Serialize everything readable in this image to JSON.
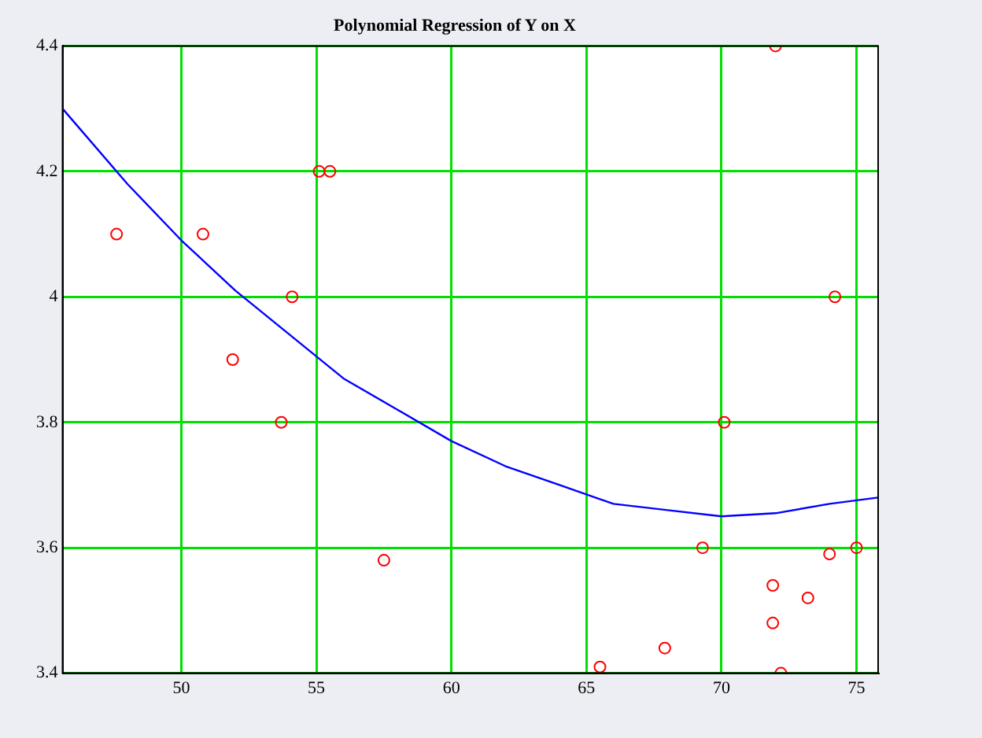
{
  "chart_data": {
    "type": "scatter",
    "title": "Polynomial Regression of Y on X",
    "xlim": [
      45.6,
      75.8
    ],
    "xticks": [
      50,
      55,
      60,
      65,
      70,
      75
    ],
    "ylim": [
      3.4,
      4.4
    ],
    "yticks": [
      3.4,
      3.6,
      3.8,
      4,
      4.2,
      4.4
    ],
    "grid": true,
    "legend": false,
    "series": [
      {
        "type": "scatter",
        "color": "#ff0000",
        "marker": "circle",
        "x": [
          47.6,
          50.8,
          51.9,
          54.1,
          53.7,
          55.1,
          55.5,
          57.5,
          65.5,
          67.9,
          69.3,
          70.1,
          72.0,
          71.9,
          71.9,
          72.2,
          73.2,
          74.0,
          74.2,
          75.0
        ],
        "values": [
          4.1,
          4.1,
          3.9,
          4.0,
          3.8,
          4.2,
          4.2,
          3.58,
          3.41,
          3.44,
          3.6,
          3.8,
          4.4,
          3.54,
          3.48,
          3.4,
          3.52,
          3.59,
          4.0,
          3.6
        ]
      },
      {
        "type": "line",
        "color": "#0000ff",
        "marker": "none",
        "x": [
          45.6,
          48,
          50,
          52,
          54,
          56,
          58,
          60,
          62,
          64,
          66,
          68,
          70,
          72,
          74,
          75.8
        ],
        "values": [
          4.3,
          4.18,
          4.09,
          4.01,
          3.94,
          3.87,
          3.82,
          3.77,
          3.73,
          3.7,
          3.67,
          3.66,
          3.65,
          3.655,
          3.67,
          3.68
        ]
      }
    ]
  }
}
